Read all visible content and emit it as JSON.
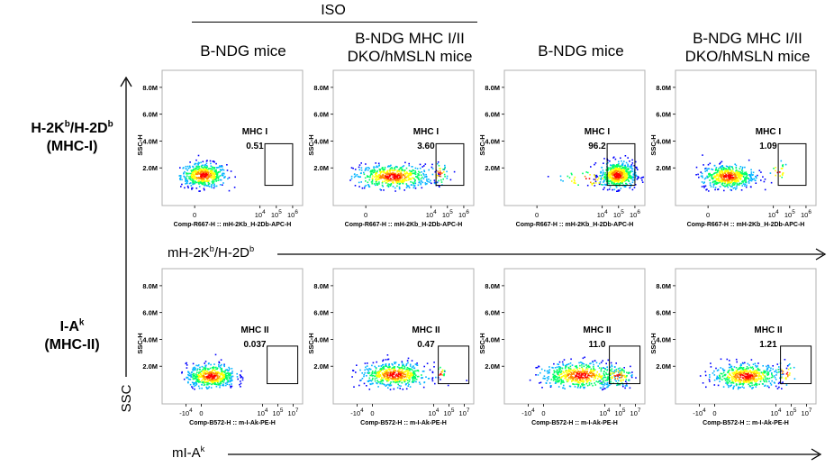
{
  "header": {
    "group_label": "ISO",
    "columns": [
      {
        "title_line1": "B-NDG mice",
        "title_line2": ""
      },
      {
        "title_line1": "B-NDG MHC I/II",
        "title_line2": "DKO/hMSLN mice"
      },
      {
        "title_line1": "B-NDG mice",
        "title_line2": ""
      },
      {
        "title_line1": "B-NDG MHC I/II",
        "title_line2": "DKO/hMSLN mice"
      }
    ]
  },
  "rows": [
    {
      "line1_base": "H-2K",
      "line1_sup_a": "b",
      "line1_mid": "/H-2D",
      "line1_sup_b": "b",
      "line2": "(MHC-I)"
    },
    {
      "line1_base": "I-A",
      "line1_sup_a": "k",
      "line1_mid": "",
      "line1_sup_b": "",
      "line2": "(MHC-II)"
    }
  ],
  "axis_titles": {
    "y": "SSC",
    "x_row1_base": "mH-2K",
    "x_row1_sup_a": "b",
    "x_row1_mid": "/H-2D",
    "x_row1_sup_b": "b",
    "x_row2_base": "mI-A",
    "x_row2_sup": "k"
  },
  "colors": {
    "density": [
      "#0000ff",
      "#00b4ff",
      "#00ff66",
      "#ffff00",
      "#ff8800",
      "#ff0000"
    ],
    "frame": "#b0b0b0",
    "gate": "#000000"
  },
  "chart_data": {
    "type": "scatter",
    "subtype": "flow-cytometry-density-plots",
    "panels": [
      {
        "row": 0,
        "col": 0,
        "gate_name": "MHC I",
        "value": "0.51",
        "value_num": 0.51,
        "ylabel": "SSC-H",
        "xlabel": "Comp-R667-H :: mH-2Kb_H-2Db-APC-H",
        "yticks": [
          "2.0M",
          "4.0M",
          "6.0M",
          "8.0M"
        ],
        "xticks": [
          "0",
          "10^4",
          "10^5",
          "10^6"
        ],
        "ylim": [
          0,
          9000000
        ],
        "xlim": [
          -1,
          6.5
        ],
        "gate": {
          "xmin": 4.3,
          "xmax": 6.0,
          "ymin": 700000,
          "ymax": 3800000
        }
      },
      {
        "row": 0,
        "col": 1,
        "gate_name": "MHC I",
        "value": "3.60",
        "value_num": 3.6,
        "ylabel": "SSC-H",
        "xlabel": "Comp-R667-H :: mH-2Kb_H-2Db-APC-H",
        "yticks": [
          "2.0M",
          "4.0M",
          "6.0M",
          "8.0M"
        ],
        "xticks": [
          "0",
          "10^4",
          "10^5",
          "10^6"
        ],
        "ylim": [
          0,
          9000000
        ],
        "xlim": [
          -1,
          6.5
        ],
        "gate": {
          "xmin": 4.3,
          "xmax": 6.0,
          "ymin": 700000,
          "ymax": 3800000
        }
      },
      {
        "row": 0,
        "col": 2,
        "gate_name": "MHC I",
        "value": "96.2",
        "value_num": 96.2,
        "ylabel": "SSC-H",
        "xlabel": "Comp-R667-H :: mH-2Kb_H-2Db-APC-H",
        "yticks": [
          "2.0M",
          "4.0M",
          "6.0M",
          "8.0M"
        ],
        "xticks": [
          "0",
          "10^4",
          "10^5",
          "10^6"
        ],
        "ylim": [
          0,
          9000000
        ],
        "xlim": [
          -1,
          6.5
        ],
        "gate": {
          "xmin": 4.3,
          "xmax": 6.0,
          "ymin": 700000,
          "ymax": 3800000
        }
      },
      {
        "row": 0,
        "col": 3,
        "gate_name": "MHC I",
        "value": "1.09",
        "value_num": 1.09,
        "ylabel": "SSC-H",
        "xlabel": "Comp-R667-H :: mH-2Kb_H-2Db-APC-H",
        "yticks": [
          "2.0M",
          "4.0M",
          "6.0M",
          "8.0M"
        ],
        "xticks": [
          "0",
          "10^4",
          "10^5",
          "10^6"
        ],
        "ylim": [
          0,
          9000000
        ],
        "xlim": [
          -1,
          6.5
        ],
        "gate": {
          "xmin": 4.3,
          "xmax": 6.0,
          "ymin": 700000,
          "ymax": 3800000
        }
      },
      {
        "row": 1,
        "col": 0,
        "gate_name": "MHC II",
        "value": "0.037",
        "value_num": 0.037,
        "ylabel": "SSC-H",
        "xlabel": "Comp-B572-H :: m-I-Ak-PE-H",
        "yticks": [
          "2.0M",
          "4.0M",
          "6.0M",
          "8.0M"
        ],
        "xticks": [
          "-10^4",
          "0",
          "10^4",
          "10^5",
          "10^7"
        ],
        "ylim": [
          0,
          9000000
        ],
        "xlim": [
          -1.5,
          6.5
        ],
        "gate": {
          "xmin": 4.3,
          "xmax": 6.3,
          "ymin": 700000,
          "ymax": 3500000
        }
      },
      {
        "row": 1,
        "col": 1,
        "gate_name": "MHC II",
        "value": "0.47",
        "value_num": 0.47,
        "ylabel": "SSC-H",
        "xlabel": "Comp-B572-H :: m-I-Ak-PE-H",
        "yticks": [
          "2.0M",
          "4.0M",
          "6.0M",
          "8.0M"
        ],
        "xticks": [
          "-10^4",
          "0",
          "10^4",
          "10^5",
          "10^7"
        ],
        "ylim": [
          0,
          9000000
        ],
        "xlim": [
          -1.5,
          6.5
        ],
        "gate": {
          "xmin": 4.3,
          "xmax": 6.3,
          "ymin": 700000,
          "ymax": 3500000
        }
      },
      {
        "row": 1,
        "col": 2,
        "gate_name": "MHC II",
        "value": "11.0",
        "value_num": 11.0,
        "ylabel": "SSC-H",
        "xlabel": "Comp-B572-H :: m-I-Ak-PE-H",
        "yticks": [
          "2.0M",
          "4.0M",
          "6.0M",
          "8.0M"
        ],
        "xticks": [
          "-10^4",
          "0",
          "10^4",
          "10^5",
          "10^7"
        ],
        "ylim": [
          0,
          9000000
        ],
        "xlim": [
          -1.5,
          6.5
        ],
        "gate": {
          "xmin": 4.3,
          "xmax": 6.3,
          "ymin": 700000,
          "ymax": 3500000
        }
      },
      {
        "row": 1,
        "col": 3,
        "gate_name": "MHC II",
        "value": "1.21",
        "value_num": 1.21,
        "ylabel": "SSC-H",
        "xlabel": "Comp-B572-H :: m-I-Ak-PE-H",
        "yticks": [
          "2.0M",
          "4.0M",
          "6.0M",
          "8.0M"
        ],
        "xticks": [
          "-10^4",
          "0",
          "10^4",
          "10^5",
          "10^7"
        ],
        "ylim": [
          0,
          9000000
        ],
        "xlim": [
          -1.5,
          6.5
        ],
        "gate": {
          "xmin": 4.3,
          "xmax": 6.3,
          "ymin": 700000,
          "ymax": 3500000
        }
      }
    ]
  }
}
